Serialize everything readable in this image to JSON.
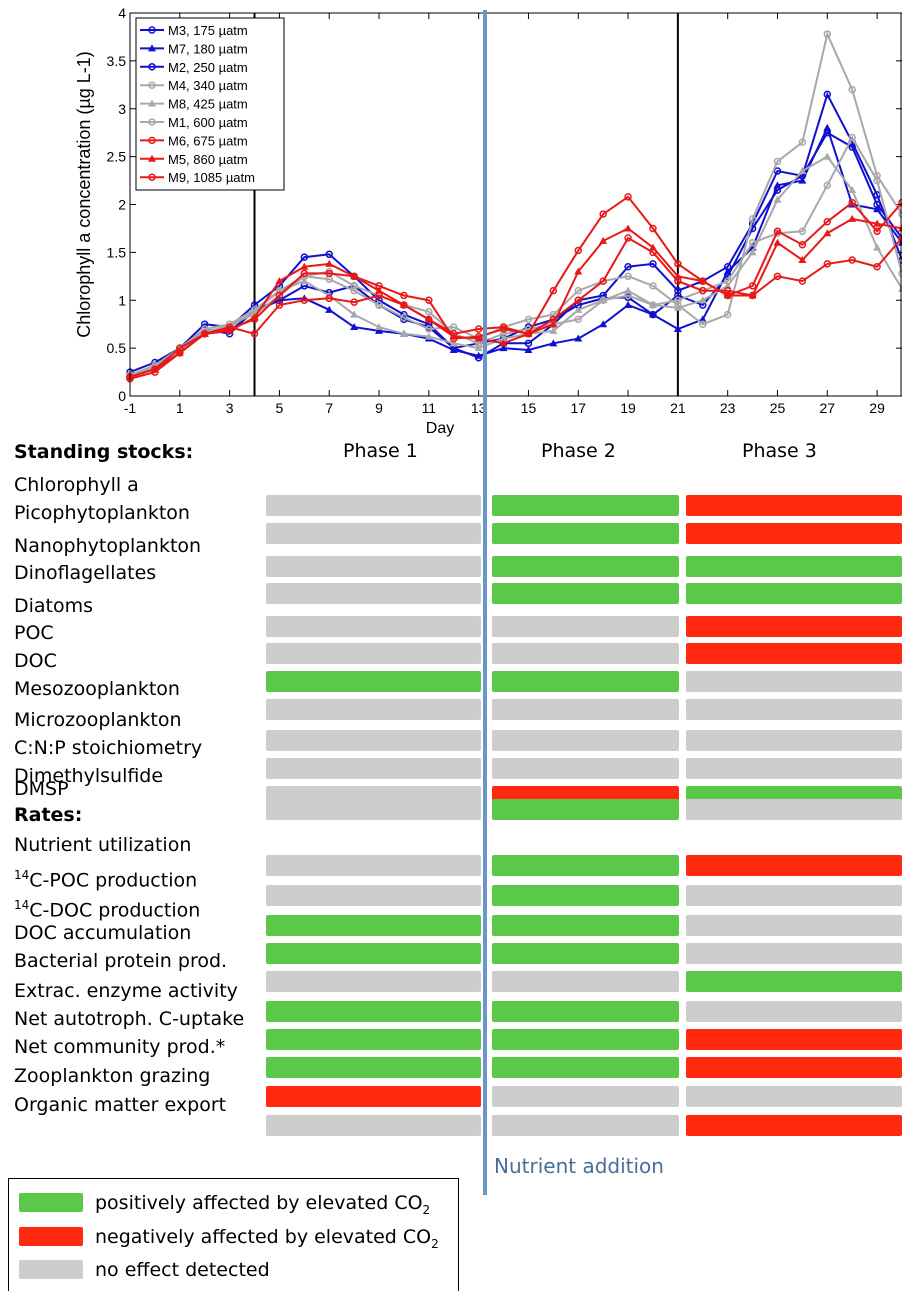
{
  "colors": {
    "positive": "#5cc84a",
    "negative": "#ff2a10",
    "none": "#cdcdcd",
    "nutrient_line": "#6a96c8"
  },
  "chart_data": {
    "type": "line",
    "xlabel": "Day",
    "ylabel": "Chlorophyll a concentration  (µg L-1)",
    "xlim": [
      -1,
      30
    ],
    "ylim": [
      0,
      4
    ],
    "x_ticks": [
      "-1",
      "1",
      "3",
      "5",
      "7",
      "9",
      "11",
      "13",
      "15",
      "17",
      "19",
      "21",
      "23",
      "25",
      "27",
      "29"
    ],
    "y_ticks": [
      "0",
      "0.5",
      "1",
      "1.5",
      "2",
      "2.5",
      "3",
      "3.5",
      "4"
    ],
    "vertical_lines_at_day": [
      4,
      21
    ],
    "legend_position": "top-left",
    "x": [
      -1,
      0,
      1,
      2,
      3,
      4,
      5,
      6,
      7,
      8,
      9,
      10,
      11,
      12,
      13,
      14,
      15,
      16,
      17,
      18,
      19,
      20,
      21,
      22,
      23,
      24,
      25,
      26,
      27,
      28,
      29,
      30
    ],
    "series": [
      {
        "name": "M3, 175 µatm",
        "color": "#1010d0",
        "marker": "circle",
        "values": [
          0.25,
          0.35,
          0.5,
          0.75,
          0.72,
          0.95,
          1.15,
          1.45,
          1.48,
          1.25,
          1.0,
          0.85,
          0.75,
          0.5,
          0.4,
          0.55,
          0.55,
          0.75,
          1.0,
          1.05,
          1.35,
          1.38,
          1.1,
          1.2,
          1.35,
          1.8,
          2.35,
          2.3,
          3.15,
          2.65,
          2.1,
          1.42
        ]
      },
      {
        "name": "M7, 180 µatm",
        "color": "#1010d0",
        "marker": "triangle",
        "values": [
          0.22,
          0.3,
          0.48,
          0.65,
          0.68,
          0.88,
          1.0,
          1.02,
          0.9,
          0.72,
          0.68,
          0.65,
          0.6,
          0.48,
          0.42,
          0.5,
          0.48,
          0.55,
          0.6,
          0.75,
          0.95,
          0.85,
          0.7,
          0.8,
          1.3,
          1.55,
          2.2,
          2.25,
          2.8,
          2.0,
          1.95,
          1.6
        ]
      },
      {
        "name": "M2, 250 µatm",
        "color": "#1010d0",
        "marker": "circle",
        "values": [
          0.2,
          0.3,
          0.5,
          0.7,
          0.65,
          0.9,
          1.0,
          1.15,
          1.08,
          1.15,
          0.95,
          0.8,
          0.72,
          0.5,
          0.55,
          0.6,
          0.72,
          0.8,
          0.95,
          1.02,
          1.03,
          0.85,
          1.05,
          0.95,
          1.25,
          1.75,
          2.15,
          2.3,
          2.75,
          2.6,
          2.0,
          1.65
        ]
      },
      {
        "name": "M4, 340 µatm",
        "color": "#a8a8a8",
        "marker": "circle",
        "values": [
          0.2,
          0.3,
          0.48,
          0.65,
          0.75,
          0.85,
          1.05,
          1.25,
          1.3,
          1.15,
          1.05,
          0.95,
          0.88,
          0.65,
          0.55,
          0.65,
          0.7,
          0.75,
          0.8,
          1.0,
          1.05,
          0.95,
          1.0,
          1.1,
          1.2,
          1.6,
          1.7,
          1.72,
          2.2,
          2.7,
          2.25,
          1.28
        ]
      },
      {
        "name": "M8, 425 µatm",
        "color": "#a8a8a8",
        "marker": "triangle",
        "values": [
          0.22,
          0.3,
          0.5,
          0.68,
          0.72,
          0.88,
          1.1,
          1.2,
          1.05,
          0.85,
          0.72,
          0.65,
          0.62,
          0.55,
          0.5,
          0.6,
          0.65,
          0.68,
          0.9,
          1.0,
          1.1,
          0.95,
          0.92,
          1.0,
          1.15,
          1.5,
          2.05,
          2.35,
          2.5,
          2.15,
          1.55,
          1.12
        ]
      },
      {
        "name": "M1, 600 µatm",
        "color": "#a8a8a8",
        "marker": "circle",
        "values": [
          0.22,
          0.32,
          0.5,
          0.7,
          0.75,
          0.9,
          1.1,
          1.25,
          1.22,
          1.1,
          0.95,
          0.82,
          0.7,
          0.72,
          0.6,
          0.72,
          0.8,
          0.85,
          1.1,
          1.2,
          1.25,
          1.15,
          0.95,
          0.75,
          0.85,
          1.85,
          2.45,
          2.65,
          3.78,
          3.2,
          2.3,
          1.9
        ]
      },
      {
        "name": "M6, 675 µatm",
        "color": "#e81818",
        "marker": "circle",
        "values": [
          0.2,
          0.28,
          0.5,
          0.65,
          0.72,
          0.65,
          0.95,
          1.0,
          1.02,
          0.98,
          1.05,
          0.95,
          0.8,
          0.65,
          0.7,
          0.72,
          0.65,
          0.8,
          1.0,
          1.2,
          1.65,
          1.5,
          1.2,
          1.1,
          1.1,
          1.05,
          1.25,
          1.2,
          1.38,
          1.42,
          1.35,
          1.65
        ]
      },
      {
        "name": "M5, 860 µatm",
        "color": "#e81818",
        "marker": "triangle",
        "values": [
          0.2,
          0.28,
          0.45,
          0.65,
          0.68,
          0.82,
          1.2,
          1.35,
          1.38,
          1.25,
          1.1,
          0.95,
          0.8,
          0.62,
          0.6,
          0.55,
          0.65,
          0.75,
          1.3,
          1.62,
          1.75,
          1.55,
          1.25,
          1.2,
          1.05,
          1.05,
          1.6,
          1.42,
          1.7,
          1.85,
          1.8,
          1.75
        ]
      },
      {
        "name": "M9, 1085 µatm",
        "color": "#e81818",
        "marker": "circle",
        "values": [
          0.18,
          0.25,
          0.45,
          0.65,
          0.7,
          0.8,
          1.05,
          1.28,
          1.28,
          1.25,
          1.15,
          1.05,
          1.0,
          0.6,
          0.62,
          0.7,
          0.65,
          1.1,
          1.52,
          1.9,
          2.08,
          1.75,
          1.38,
          1.2,
          1.05,
          1.15,
          1.72,
          1.58,
          1.82,
          2.02,
          1.72,
          2.02
        ]
      }
    ]
  },
  "standing_stocks_header": "Standing stocks:",
  "phases": [
    "Phase 1",
    "Phase 2",
    "Phase 3"
  ],
  "standing_stocks": [
    {
      "label": "Chlorophyll a",
      "effects": [
        "none",
        "positive",
        "negative"
      ]
    },
    {
      "label": "Picophytoplankton",
      "effects": [
        "none",
        "positive",
        "negative"
      ]
    },
    {
      "label": "Nanophytoplankton",
      "effects": [
        "none",
        "positive",
        "positive"
      ]
    },
    {
      "label": "Dinoflagellates",
      "effects": [
        "none",
        "positive",
        "positive"
      ]
    },
    {
      "label": "Diatoms",
      "effects": [
        "none",
        "none",
        "negative"
      ]
    },
    {
      "label": "POC",
      "effects": [
        "none",
        "none",
        "negative"
      ]
    },
    {
      "label": "DOC",
      "effects": [
        "positive",
        "positive",
        "none"
      ]
    },
    {
      "label": "Mesozooplankton",
      "effects": [
        "none",
        "none",
        "none"
      ]
    },
    {
      "label": "Microzooplankton",
      "effects": [
        "none",
        "none",
        "none"
      ]
    },
    {
      "label": "C:N:P stoichiometry",
      "effects": [
        "none",
        "none",
        "none"
      ]
    },
    {
      "label": "Dimethylsulfide",
      "effects": [
        "none",
        "negative",
        "positive"
      ]
    },
    {
      "label": "DMSP",
      "effects": [
        "none",
        "positive",
        "none"
      ]
    }
  ],
  "rates_header": "Rates:",
  "rates": [
    {
      "label": "Nutrient utilization",
      "effects": [
        "none",
        "positive",
        "negative"
      ]
    },
    {
      "label": "C-POC production",
      "superscript": "14",
      "effects": [
        "none",
        "positive",
        "none"
      ]
    },
    {
      "label": "C-DOC production",
      "superscript": "14",
      "effects": [
        "positive",
        "positive",
        "none"
      ]
    },
    {
      "label": "DOC accumulation",
      "effects": [
        "positive",
        "positive",
        "none"
      ]
    },
    {
      "label": "Bacterial protein prod.",
      "effects": [
        "none",
        "none",
        "positive"
      ]
    },
    {
      "label": "Extrac. enzyme activity",
      "effects": [
        "positive",
        "positive",
        "none"
      ]
    },
    {
      "label": "Net autotroph. C-uptake",
      "effects": [
        "positive",
        "positive",
        "negative"
      ]
    },
    {
      "label": "Net community prod.*",
      "effects": [
        "positive",
        "positive",
        "negative"
      ]
    },
    {
      "label": "Zooplankton grazing",
      "effects": [
        "negative",
        "none",
        "none"
      ]
    },
    {
      "label": "Organic matter export",
      "effects": [
        "none",
        "none",
        "negative"
      ]
    }
  ],
  "nutrient_addition_label": "Nutrient addition",
  "legend": {
    "positive": "positively affected by elevated CO",
    "negative": "negatively affected by elevated CO",
    "co2_subscript": "2",
    "none": "no effect detected"
  }
}
